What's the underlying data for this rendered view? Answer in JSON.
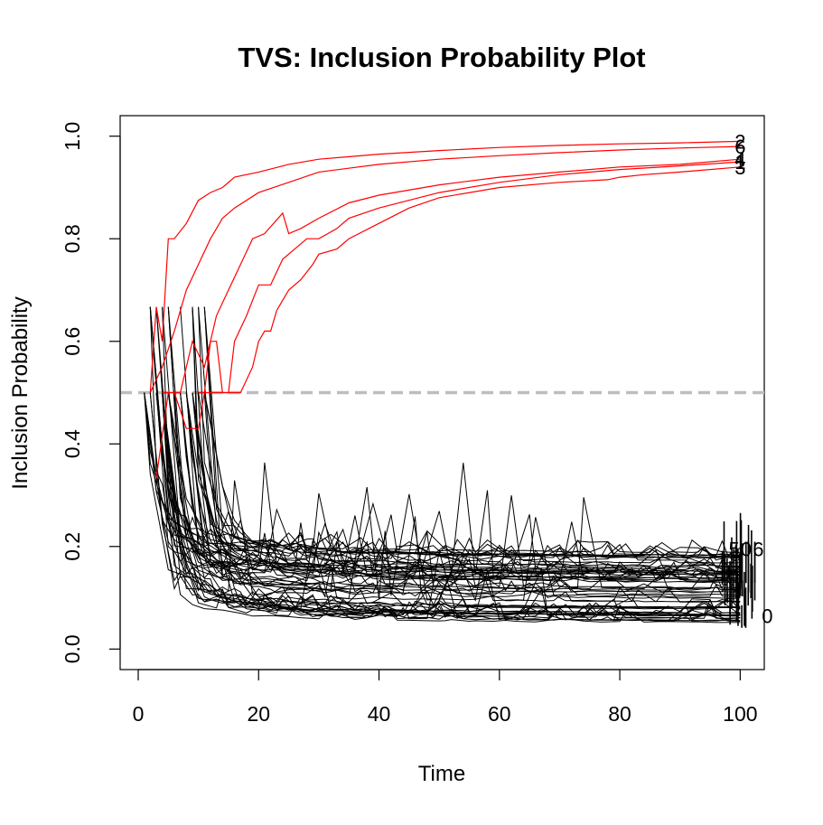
{
  "chart_data": {
    "type": "line",
    "title": "TVS: Inclusion Probability Plot",
    "xlabel": "Time",
    "ylabel": "Inclusion Probability",
    "xlim": [
      -3,
      104
    ],
    "ylim": [
      -0.04,
      1.04
    ],
    "x_ticks": [
      0,
      20,
      40,
      60,
      80,
      100
    ],
    "y_ticks": [
      0.0,
      0.2,
      0.4,
      0.6,
      0.8,
      1.0
    ],
    "x_tick_labels": [
      "0",
      "20",
      "40",
      "60",
      "80",
      "100"
    ],
    "y_tick_labels": [
      "0.0",
      "0.2",
      "0.4",
      "0.6",
      "0.8",
      "1.0"
    ],
    "threshold": {
      "y": 0.5,
      "color": "#bebebe",
      "style": "dashed"
    },
    "colors": {
      "selected": "#ff0000",
      "unselected": "#000000"
    },
    "selected_series": [
      {
        "name": "2",
        "label": "2",
        "color": "#ff0000",
        "x": [
          2,
          3,
          4,
          5,
          6,
          8,
          10,
          12,
          14,
          16,
          20,
          25,
          30,
          40,
          50,
          60,
          70,
          80,
          90,
          100
        ],
        "y": [
          0.5,
          0.667,
          0.6,
          0.8,
          0.8,
          0.83,
          0.875,
          0.89,
          0.9,
          0.92,
          0.93,
          0.945,
          0.955,
          0.965,
          0.972,
          0.978,
          0.982,
          0.985,
          0.987,
          0.99
        ]
      },
      {
        "name": "6",
        "label": "6",
        "color": "#ff0000",
        "x": [
          2,
          4,
          6,
          8,
          10,
          12,
          14,
          16,
          20,
          25,
          30,
          40,
          50,
          60,
          70,
          80,
          90,
          100
        ],
        "y": [
          0.5,
          0.55,
          0.62,
          0.7,
          0.75,
          0.8,
          0.84,
          0.86,
          0.89,
          0.91,
          0.93,
          0.945,
          0.955,
          0.962,
          0.968,
          0.973,
          0.977,
          0.98
        ]
      },
      {
        "name": "4",
        "label": "4",
        "color": "#ff0000",
        "x": [
          3,
          5,
          7,
          9,
          11,
          13,
          15,
          17,
          19,
          21,
          24,
          25,
          27,
          30,
          35,
          40,
          50,
          60,
          70,
          80,
          90,
          100
        ],
        "y": [
          0.333,
          0.5,
          0.5,
          0.6,
          0.55,
          0.65,
          0.7,
          0.75,
          0.8,
          0.81,
          0.85,
          0.81,
          0.82,
          0.84,
          0.87,
          0.885,
          0.905,
          0.92,
          0.93,
          0.94,
          0.945,
          0.955
        ]
      },
      {
        "name": "1",
        "label": "1",
        "color": "#ff0000",
        "x": [
          4,
          6,
          8,
          10,
          11,
          12,
          13,
          14,
          15,
          16,
          18,
          20,
          22,
          24,
          26,
          28,
          30,
          33,
          35,
          40,
          50,
          60,
          70,
          80,
          90,
          100
        ],
        "y": [
          0.5,
          0.5,
          0.43,
          0.43,
          0.5,
          0.6,
          0.6,
          0.5,
          0.5,
          0.6,
          0.65,
          0.71,
          0.71,
          0.76,
          0.78,
          0.8,
          0.8,
          0.82,
          0.84,
          0.86,
          0.89,
          0.91,
          0.925,
          0.935,
          0.942,
          0.95
        ]
      },
      {
        "name": "3",
        "label": "3",
        "color": "#ff0000",
        "x": [
          10,
          12,
          14,
          17,
          19,
          20,
          21,
          22,
          23,
          24,
          25,
          27,
          29,
          30,
          33,
          35,
          40,
          45,
          50,
          60,
          70,
          78,
          80,
          84,
          90,
          100
        ],
        "y": [
          0.5,
          0.5,
          0.5,
          0.5,
          0.55,
          0.6,
          0.62,
          0.62,
          0.66,
          0.68,
          0.7,
          0.72,
          0.75,
          0.77,
          0.78,
          0.8,
          0.83,
          0.86,
          0.88,
          0.9,
          0.91,
          0.915,
          0.92,
          0.925,
          0.93,
          0.94
        ]
      }
    ],
    "unselected_series_note": "dozens of additional black series converging toward ~0.05-0.2 by time 100",
    "unselected_series_count": 60,
    "end_labels_visible": [
      "5",
      "0",
      "6",
      "0"
    ]
  }
}
